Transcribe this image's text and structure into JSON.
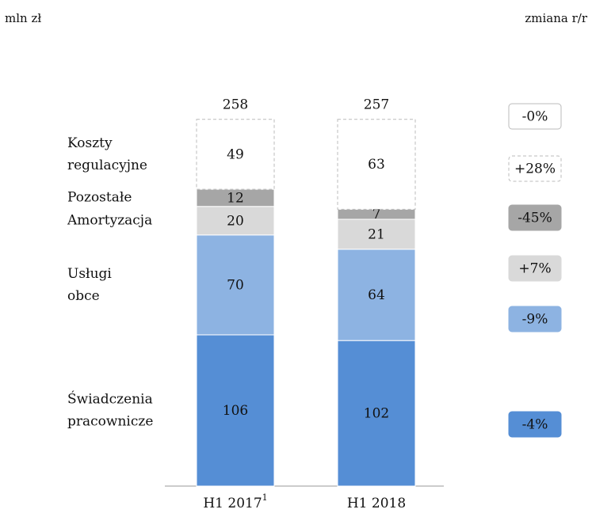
{
  "chart_data": {
    "type": "stacked_bar",
    "unit_label": "mln zł",
    "change_header": "zmiana r/r",
    "categories": [
      "H1 2017",
      "H1 2018"
    ],
    "category_footnote": "1",
    "totals": [
      258,
      257
    ],
    "total_change": "-0%",
    "series": [
      {
        "name": "Świadczenia pracownicze",
        "color": "#558ed5",
        "values": [
          106,
          102
        ],
        "change": "-4%"
      },
      {
        "name": "Usługi obce",
        "color": "#8db3e2",
        "values": [
          70,
          64
        ],
        "change": "-9%"
      },
      {
        "name": "Amortyzacja",
        "color": "#d9d9d9",
        "values": [
          20,
          21
        ],
        "change": "+7%"
      },
      {
        "name": "Pozostałe",
        "color": "#a6a6a6",
        "values": [
          12,
          7
        ],
        "change": "-45%"
      },
      {
        "name": "Koszty regulacyjne",
        "color": "#ffffff",
        "values": [
          49,
          63
        ],
        "change": "+28%"
      }
    ]
  }
}
